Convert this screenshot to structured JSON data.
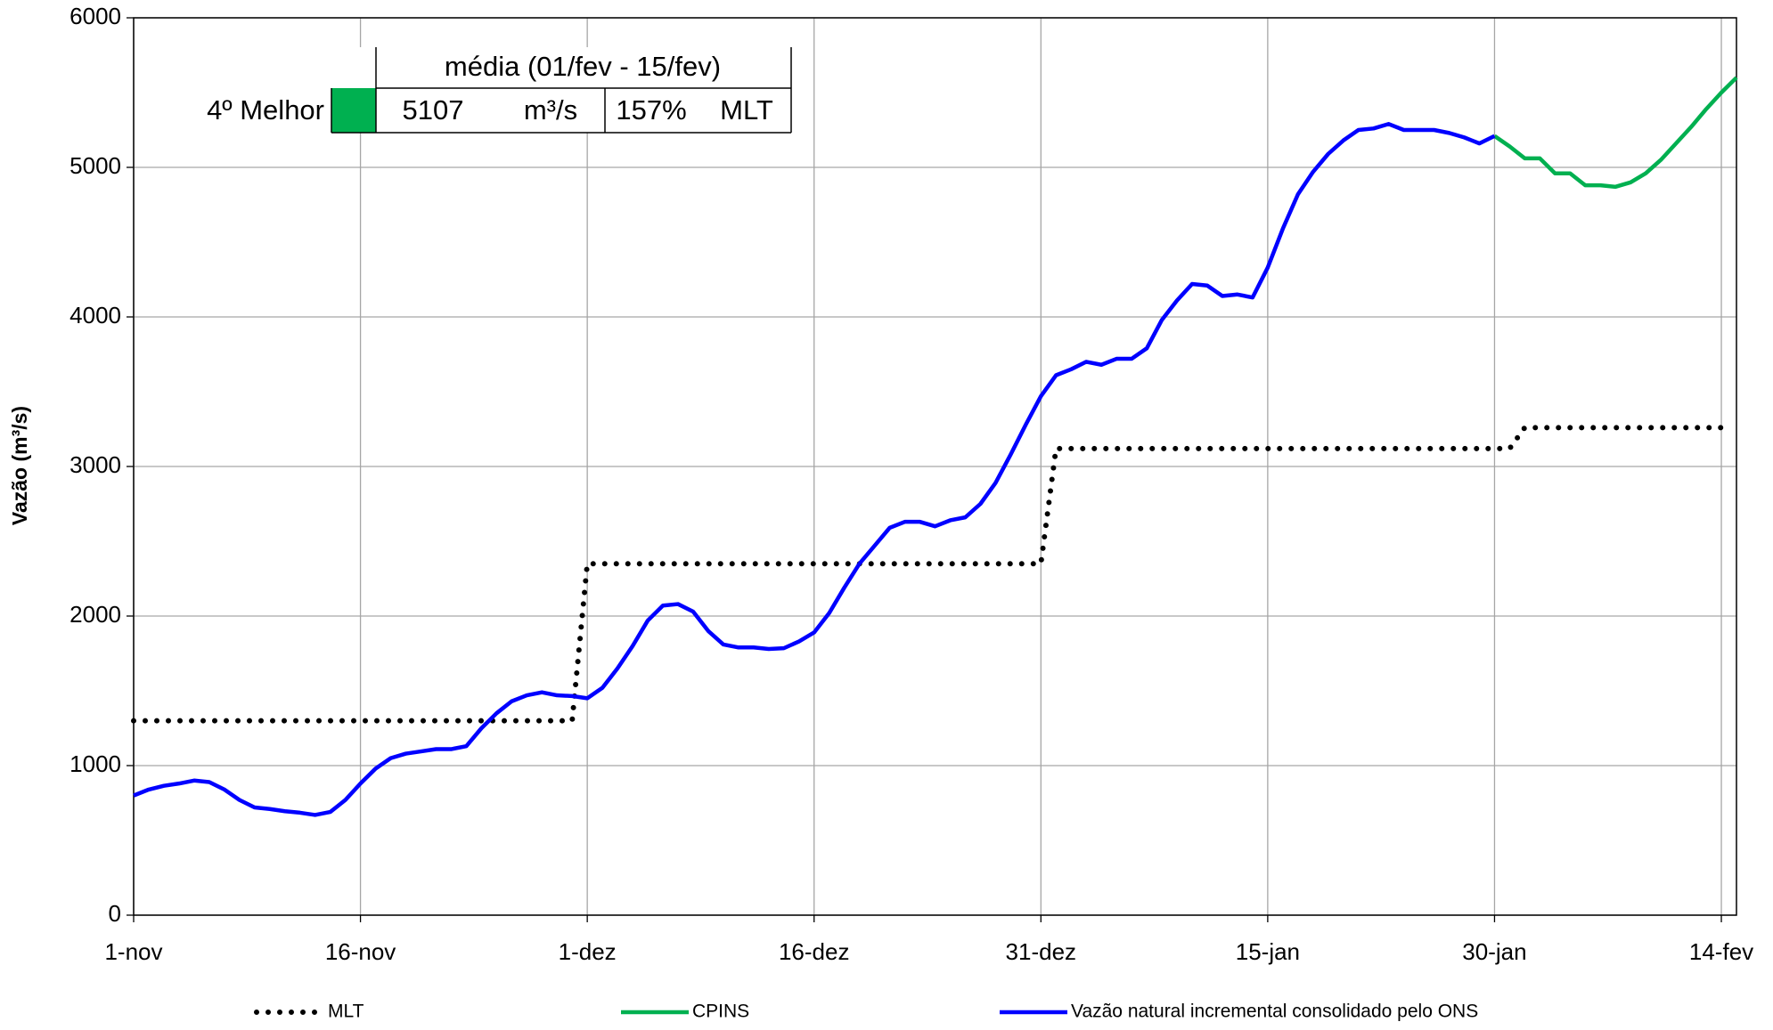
{
  "chart_data": {
    "type": "line",
    "y_label": "Vazão (m³/s)",
    "x": [
      0,
      1,
      2,
      3,
      4,
      5,
      6,
      7,
      8,
      9,
      10,
      11,
      12,
      13,
      14,
      15,
      16,
      17,
      18,
      19,
      20,
      21,
      22,
      23,
      24,
      25,
      26,
      27,
      28,
      29,
      30,
      31,
      32,
      33,
      34,
      35,
      36,
      37,
      38,
      39,
      40,
      41,
      42,
      43,
      44,
      45,
      46,
      47,
      48,
      49,
      50,
      51,
      52,
      53,
      54,
      55,
      56,
      57,
      58,
      59,
      60,
      61,
      62,
      63,
      64,
      65,
      66,
      67,
      68,
      69,
      70,
      71,
      72,
      73,
      74,
      75,
      76,
      77,
      78,
      79,
      80,
      81,
      82,
      83,
      84,
      85,
      86,
      87,
      88,
      89,
      90,
      91,
      92,
      93,
      94,
      95,
      96,
      97,
      98,
      99,
      100,
      101,
      102,
      103,
      104,
      105,
      106
    ],
    "xlim": [
      0,
      106
    ],
    "xticks": [
      {
        "value": 0,
        "label": "1-nov"
      },
      {
        "value": 15,
        "label": "16-nov"
      },
      {
        "value": 30,
        "label": "1-dez"
      },
      {
        "value": 45,
        "label": "16-dez"
      },
      {
        "value": 60,
        "label": "31-dez"
      },
      {
        "value": 75,
        "label": "15-jan"
      },
      {
        "value": 90,
        "label": "30-jan"
      },
      {
        "value": 105,
        "label": "14-fev"
      }
    ],
    "ylim": [
      0,
      6000
    ],
    "yticks": [
      0,
      1000,
      2000,
      3000,
      4000,
      5000,
      6000
    ],
    "grid": true,
    "legend": "bottom",
    "series": [
      {
        "name": "MLT",
        "color": "#000000",
        "style": "dotted",
        "values": [
          1300,
          1300,
          1300,
          1300,
          1300,
          1300,
          1300,
          1300,
          1300,
          1300,
          1300,
          1300,
          1300,
          1300,
          1300,
          1300,
          1300,
          1300,
          1300,
          1300,
          1300,
          1300,
          1300,
          1300,
          1300,
          1300,
          1300,
          1300,
          1300,
          1300,
          2350,
          2350,
          2350,
          2350,
          2350,
          2350,
          2350,
          2350,
          2350,
          2350,
          2350,
          2350,
          2350,
          2350,
          2350,
          2350,
          2350,
          2350,
          2350,
          2350,
          2350,
          2350,
          2350,
          2350,
          2350,
          2350,
          2350,
          2350,
          2350,
          2350,
          2350,
          3120,
          3120,
          3120,
          3120,
          3120,
          3120,
          3120,
          3120,
          3120,
          3120,
          3120,
          3120,
          3120,
          3120,
          3120,
          3120,
          3120,
          3120,
          3120,
          3120,
          3120,
          3120,
          3120,
          3120,
          3120,
          3120,
          3120,
          3120,
          3120,
          3120,
          3120,
          3260,
          3260,
          3260,
          3260,
          3260,
          3260,
          3260,
          3260,
          3260,
          3260,
          3260,
          3260,
          3260,
          3260,
          null
        ]
      },
      {
        "name": "CPINS",
        "color": "#00b050",
        "style": "solid",
        "values": [
          null,
          null,
          null,
          null,
          null,
          null,
          null,
          null,
          null,
          null,
          null,
          null,
          null,
          null,
          null,
          null,
          null,
          null,
          null,
          null,
          null,
          null,
          null,
          null,
          null,
          null,
          null,
          null,
          null,
          null,
          null,
          null,
          null,
          null,
          null,
          null,
          null,
          null,
          null,
          null,
          null,
          null,
          null,
          null,
          null,
          null,
          null,
          null,
          null,
          null,
          null,
          null,
          null,
          null,
          null,
          null,
          null,
          null,
          null,
          null,
          null,
          null,
          null,
          null,
          null,
          null,
          null,
          null,
          null,
          null,
          null,
          null,
          null,
          null,
          null,
          null,
          null,
          null,
          null,
          null,
          null,
          null,
          null,
          null,
          null,
          null,
          null,
          null,
          null,
          null,
          5210,
          5140,
          5060,
          5060,
          4960,
          4960,
          4880,
          4880,
          4870,
          4900,
          4960,
          5050,
          5160,
          5270,
          5390,
          5500,
          5600
        ]
      },
      {
        "name": "Vazão natural incremental consolidado pelo ONS",
        "color": "#0000ff",
        "style": "solid",
        "values": [
          800,
          840,
          865,
          880,
          900,
          890,
          840,
          770,
          720,
          710,
          695,
          685,
          670,
          690,
          770,
          880,
          980,
          1050,
          1080,
          1095,
          1110,
          1110,
          1130,
          1250,
          1350,
          1430,
          1470,
          1490,
          1470,
          1465,
          1450,
          1520,
          1650,
          1800,
          1970,
          2070,
          2080,
          2030,
          1900,
          1810,
          1790,
          1790,
          1780,
          1785,
          1830,
          1890,
          2020,
          2190,
          2350,
          2470,
          2590,
          2630,
          2630,
          2600,
          2640,
          2660,
          2750,
          2890,
          3080,
          3280,
          3470,
          3610,
          3650,
          3700,
          3680,
          3720,
          3720,
          3790,
          3980,
          4110,
          4220,
          4210,
          4140,
          4150,
          4130,
          4330,
          4590,
          4820,
          4970,
          5090,
          5180,
          5250,
          5260,
          5290,
          5250,
          5250,
          5250,
          5230,
          5200,
          5160,
          5210,
          null,
          null,
          null,
          null,
          null,
          null,
          null,
          null,
          null,
          null,
          null,
          null,
          null,
          null,
          null,
          null
        ]
      }
    ],
    "inset": {
      "header": "média (01/fev - 15/fev)",
      "rank": "4º Melhor",
      "color": "#00b050",
      "mean": "5107",
      "unit": "m³/s",
      "percent": "157%",
      "reference": "MLT"
    }
  }
}
